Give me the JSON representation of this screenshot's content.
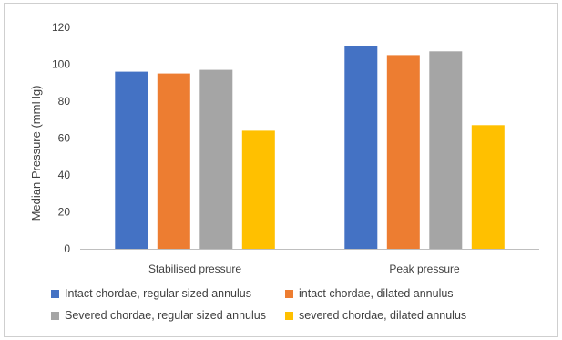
{
  "chart_data": {
    "type": "bar",
    "title": "",
    "xlabel": "",
    "ylabel": "Median Pressure (mmHg)",
    "ylim": [
      0,
      120
    ],
    "yticks": [
      0,
      20,
      40,
      60,
      80,
      100,
      120
    ],
    "grid": false,
    "legend_position": "bottom",
    "categories": [
      "Stabilised pressure",
      "Peak pressure"
    ],
    "series": [
      {
        "name": "Intact chordae, regular sized annulus",
        "color": "#4472C4",
        "values": [
          96,
          110
        ]
      },
      {
        "name": "intact chordae, dilated annulus",
        "color": "#ED7D31",
        "values": [
          95,
          105
        ]
      },
      {
        "name": "Severed chordae, regular sized annulus",
        "color": "#A5A5A5",
        "values": [
          97,
          107
        ]
      },
      {
        "name": "severed chordae, dilated annulus",
        "color": "#FFC000",
        "values": [
          64,
          67
        ]
      }
    ]
  }
}
